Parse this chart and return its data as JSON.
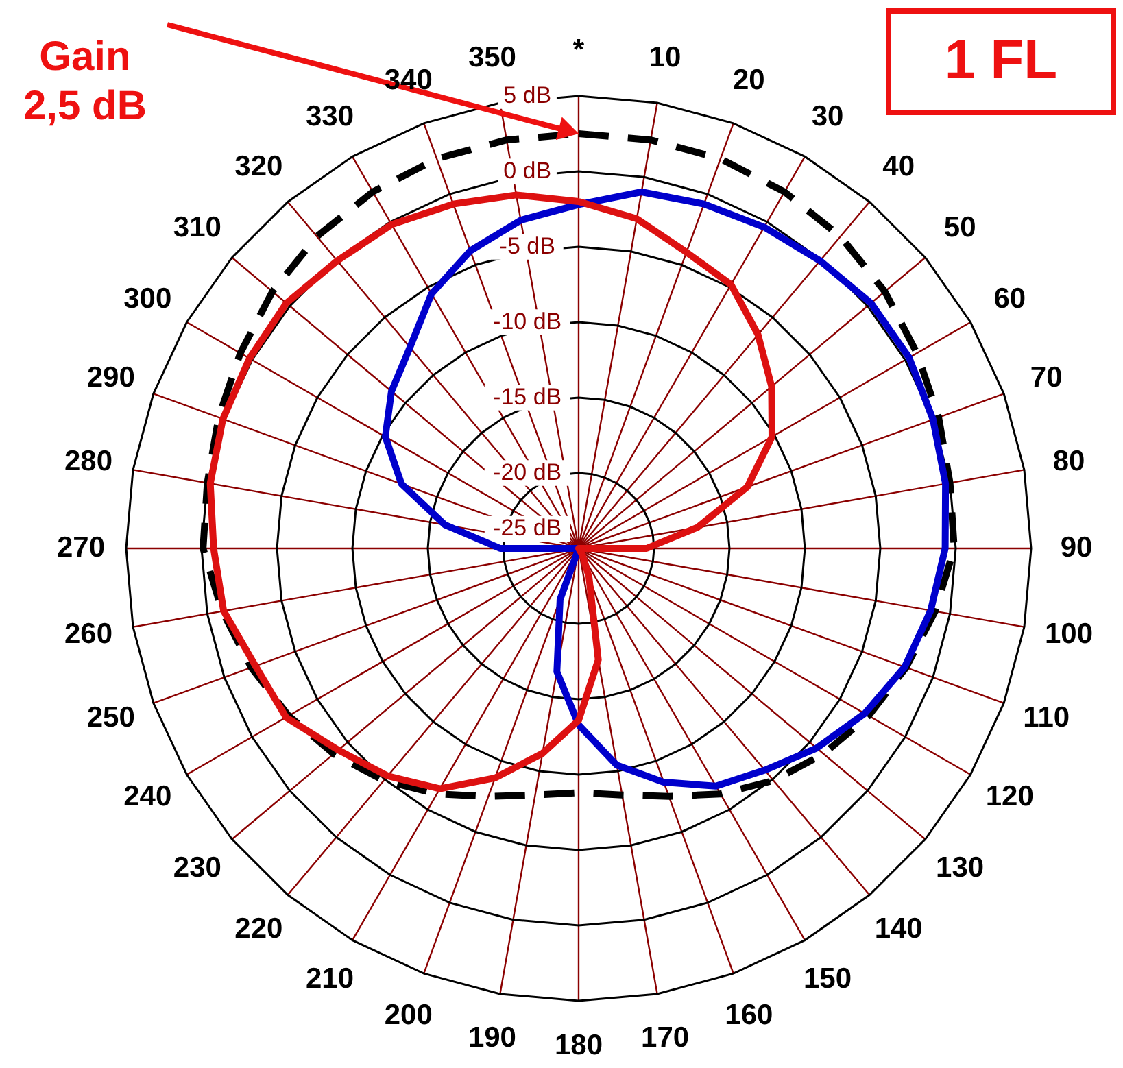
{
  "chart_data": {
    "type": "radar",
    "categories": [
      "*",
      "10",
      "20",
      "30",
      "40",
      "50",
      "60",
      "70",
      "80",
      "90",
      "100",
      "110",
      "120",
      "130",
      "140",
      "150",
      "160",
      "170",
      "180",
      "190",
      "200",
      "210",
      "220",
      "230",
      "240",
      "250",
      "260",
      "270",
      "280",
      "290",
      "300",
      "310",
      "320",
      "330",
      "340",
      "350"
    ],
    "series": [
      {
        "color": "#000000",
        "line_style": "dashed",
        "values": [
          2.5,
          2.5,
          2.5,
          2.3,
          2.0,
          1.5,
          0.9,
          0.4,
          0.0,
          -0.1,
          -1.0,
          -1.9,
          -2.8,
          -3.8,
          -4.9,
          -6.2,
          -7.5,
          -8.4,
          -8.8,
          -8.4,
          -7.5,
          -6.2,
          -4.9,
          -3.8,
          -2.8,
          -1.9,
          -1.0,
          -0.1,
          0.0,
          0.4,
          0.9,
          1.5,
          2.0,
          2.3,
          2.5,
          2.5
        ]
      },
      {
        "color": "#0000cc",
        "values": [
          -2.2,
          -1.0,
          -0.7,
          -0.4,
          -0.1,
          0.3,
          0.3,
          0.0,
          -0.3,
          -0.7,
          -1.3,
          -2.0,
          -3.1,
          -4.4,
          -5.8,
          -6.8,
          -8.5,
          -10.4,
          -13.3,
          -16.7,
          -21.4,
          -25,
          -25,
          -25,
          -25,
          -25,
          -25,
          -19.8,
          -16,
          -12.5,
          -10.2,
          -8.8,
          -7.6,
          -5.5,
          -4.0,
          -2.9
        ]
      },
      {
        "color": "#dd1111",
        "values": [
          -2.0,
          -2.8,
          -4.1,
          -4.8,
          -6.5,
          -8.3,
          -10.2,
          -13.1,
          -17,
          -20.5,
          -25,
          -25,
          -25,
          -25,
          -25,
          -24.5,
          -23,
          -17.5,
          -13.6,
          -11.2,
          -8.8,
          -6.6,
          -5.3,
          -4.2,
          -2.6,
          -2.2,
          -1.1,
          -0.8,
          -0.2,
          0.1,
          0.2,
          0.3,
          -0.1,
          -0.2,
          -0.7,
          -1.2
        ]
      }
    ],
    "ylim": [
      -25,
      5
    ],
    "yticks": [
      {
        "value": -25,
        "label": "-25 dB"
      },
      {
        "value": -20,
        "label": "-20 dB"
      },
      {
        "value": -15,
        "label": "-15 dB"
      },
      {
        "value": -10,
        "label": "-10 dB"
      },
      {
        "value": -5,
        "label": "-5 dB"
      },
      {
        "value": 0,
        "label": "0 dB"
      },
      {
        "value": 5,
        "label": "5 dB"
      }
    ],
    "grid": true,
    "annotations": [
      "Gain\n2,5 dB",
      "1 FL"
    ]
  }
}
